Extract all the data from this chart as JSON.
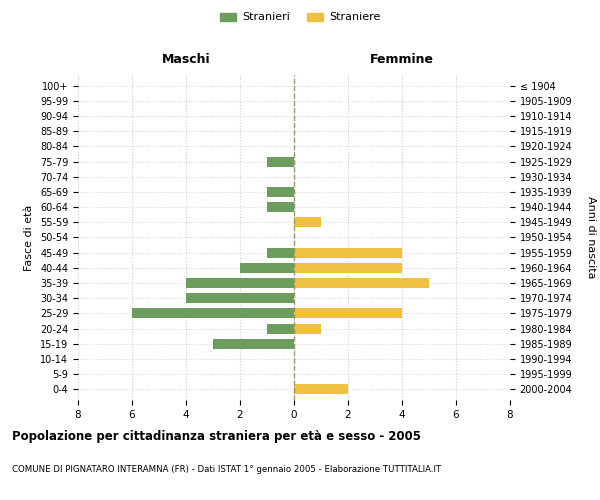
{
  "age_groups": [
    "0-4",
    "5-9",
    "10-14",
    "15-19",
    "20-24",
    "25-29",
    "30-34",
    "35-39",
    "40-44",
    "45-49",
    "50-54",
    "55-59",
    "60-64",
    "65-69",
    "70-74",
    "75-79",
    "80-84",
    "85-89",
    "90-94",
    "95-99",
    "100+"
  ],
  "birth_years": [
    "2000-2004",
    "1995-1999",
    "1990-1994",
    "1985-1989",
    "1980-1984",
    "1975-1979",
    "1970-1974",
    "1965-1969",
    "1960-1964",
    "1955-1959",
    "1950-1954",
    "1945-1949",
    "1940-1944",
    "1935-1939",
    "1930-1934",
    "1925-1929",
    "1920-1924",
    "1915-1919",
    "1910-1914",
    "1905-1909",
    "≤ 1904"
  ],
  "maschi_stranieri": [
    0,
    0,
    0,
    3,
    1,
    6,
    4,
    4,
    2,
    1,
    0,
    0,
    1,
    1,
    0,
    1,
    0,
    0,
    0,
    0,
    0
  ],
  "femmine_straniere": [
    2,
    0,
    0,
    0,
    1,
    4,
    0,
    5,
    4,
    4,
    0,
    1,
    0,
    0,
    0,
    0,
    0,
    0,
    0,
    0,
    0
  ],
  "male_color": "#6b9e5e",
  "female_color": "#f0c040",
  "title": "Popolazione per cittadinanza straniera per età e sesso - 2005",
  "subtitle": "COMUNE DI PIGNATARO INTERAMNA (FR) - Dati ISTAT 1° gennaio 2005 - Elaborazione TUTTITALIA.IT",
  "xlabel_left": "Maschi",
  "xlabel_right": "Femmine",
  "ylabel_left": "Fasce di età",
  "ylabel_right": "Anni di nascita",
  "legend_stranieri": "Stranieri",
  "legend_straniere": "Straniere",
  "xlim": 8,
  "background_color": "#ffffff",
  "grid_color": "#cccccc"
}
